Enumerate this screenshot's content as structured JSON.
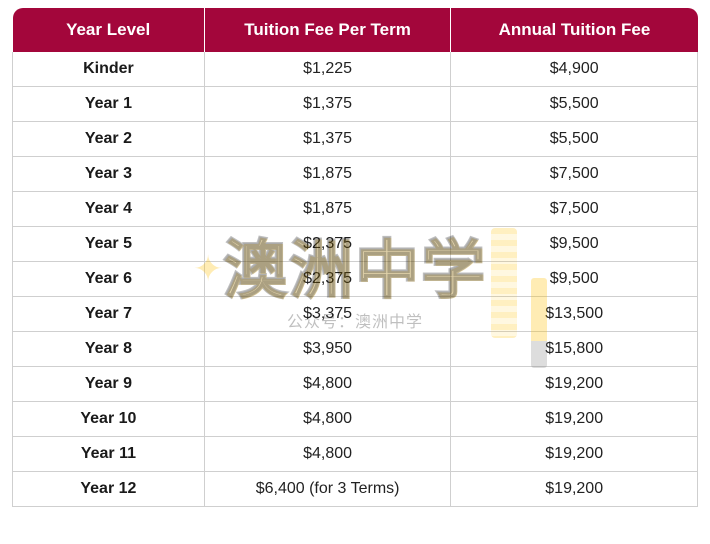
{
  "table": {
    "header_bg": "#a3063b",
    "header_fg": "#ffffff",
    "border_color": "#cfcfcf",
    "row_text_color": "#222222",
    "columns": [
      "Year Level",
      "Tuition Fee Per Term",
      "Annual Tuition Fee"
    ],
    "column_widths_pct": [
      28,
      36,
      36
    ],
    "header_fontsize": 17,
    "cell_fontsize": 16,
    "rows": [
      {
        "level": "Kinder",
        "per_term": "$1,225",
        "annual": "$4,900"
      },
      {
        "level": "Year 1",
        "per_term": "$1,375",
        "annual": "$5,500"
      },
      {
        "level": "Year 2",
        "per_term": "$1,375",
        "annual": "$5,500"
      },
      {
        "level": "Year 3",
        "per_term": "$1,875",
        "annual": "$7,500"
      },
      {
        "level": "Year 4",
        "per_term": "$1,875",
        "annual": "$7,500"
      },
      {
        "level": "Year 5",
        "per_term": "$2,375",
        "annual": "$9,500"
      },
      {
        "level": "Year 6",
        "per_term": "$2,375",
        "annual": "$9,500"
      },
      {
        "level": "Year 7",
        "per_term": "$3,375",
        "annual": "$13,500"
      },
      {
        "level": "Year 8",
        "per_term": "$3,950",
        "annual": "$15,800"
      },
      {
        "level": "Year 9",
        "per_term": "$4,800",
        "annual": "$19,200"
      },
      {
        "level": "Year 10",
        "per_term": "$4,800",
        "annual": "$19,200"
      },
      {
        "level": "Year 11",
        "per_term": "$4,800",
        "annual": "$19,200"
      },
      {
        "level": "Year 12",
        "per_term": "$6,400 (for 3 Terms)",
        "annual": "$19,200"
      }
    ]
  },
  "watermark": {
    "main_text": "澳洲中学",
    "sub_text": "公众号：澳洲中学",
    "main_color": "rgba(0,0,0,0.12)",
    "outline_color": "rgba(0,0,0,0.25)",
    "accent_color": "rgba(255,193,7,0.28)",
    "main_fontsize": 64,
    "sub_fontsize": 16
  }
}
